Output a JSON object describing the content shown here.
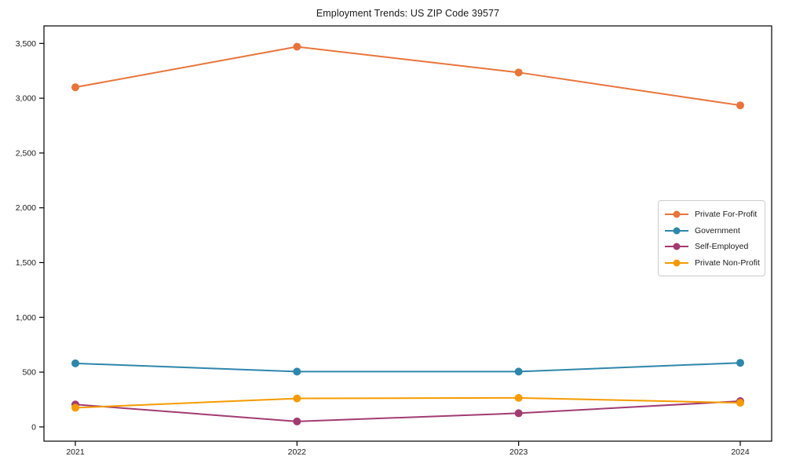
{
  "chart_data": {
    "type": "line",
    "title": "Employment Trends: US ZIP Code 39577",
    "categories": [
      "2021",
      "2022",
      "2023",
      "2024"
    ],
    "series": [
      {
        "name": "Private For-Profit",
        "color": "#E8743B",
        "values": [
          3100,
          3470,
          3235,
          2935
        ]
      },
      {
        "name": "Government",
        "color": "#2E86AB",
        "values": [
          580,
          505,
          505,
          585
        ]
      },
      {
        "name": "Self-Employed",
        "color": "#A23B72",
        "values": [
          205,
          50,
          125,
          235
        ]
      },
      {
        "name": "Private Non-Profit",
        "color": "#F59B00",
        "values": [
          175,
          260,
          265,
          220
        ]
      }
    ],
    "xlabel": "",
    "ylabel": "",
    "yticks": [
      0,
      500,
      1000,
      1500,
      2000,
      2500,
      3000,
      3500
    ],
    "ytick_labels": [
      "0",
      "500",
      "1,000",
      "1,500",
      "2,000",
      "2,500",
      "3,000",
      "3,500"
    ],
    "ylim": [
      -130,
      3660
    ],
    "grid": false,
    "legend_position": "center-right",
    "marker": "circle",
    "axis_color": "#000000",
    "text_color": "#1a1a1a"
  }
}
